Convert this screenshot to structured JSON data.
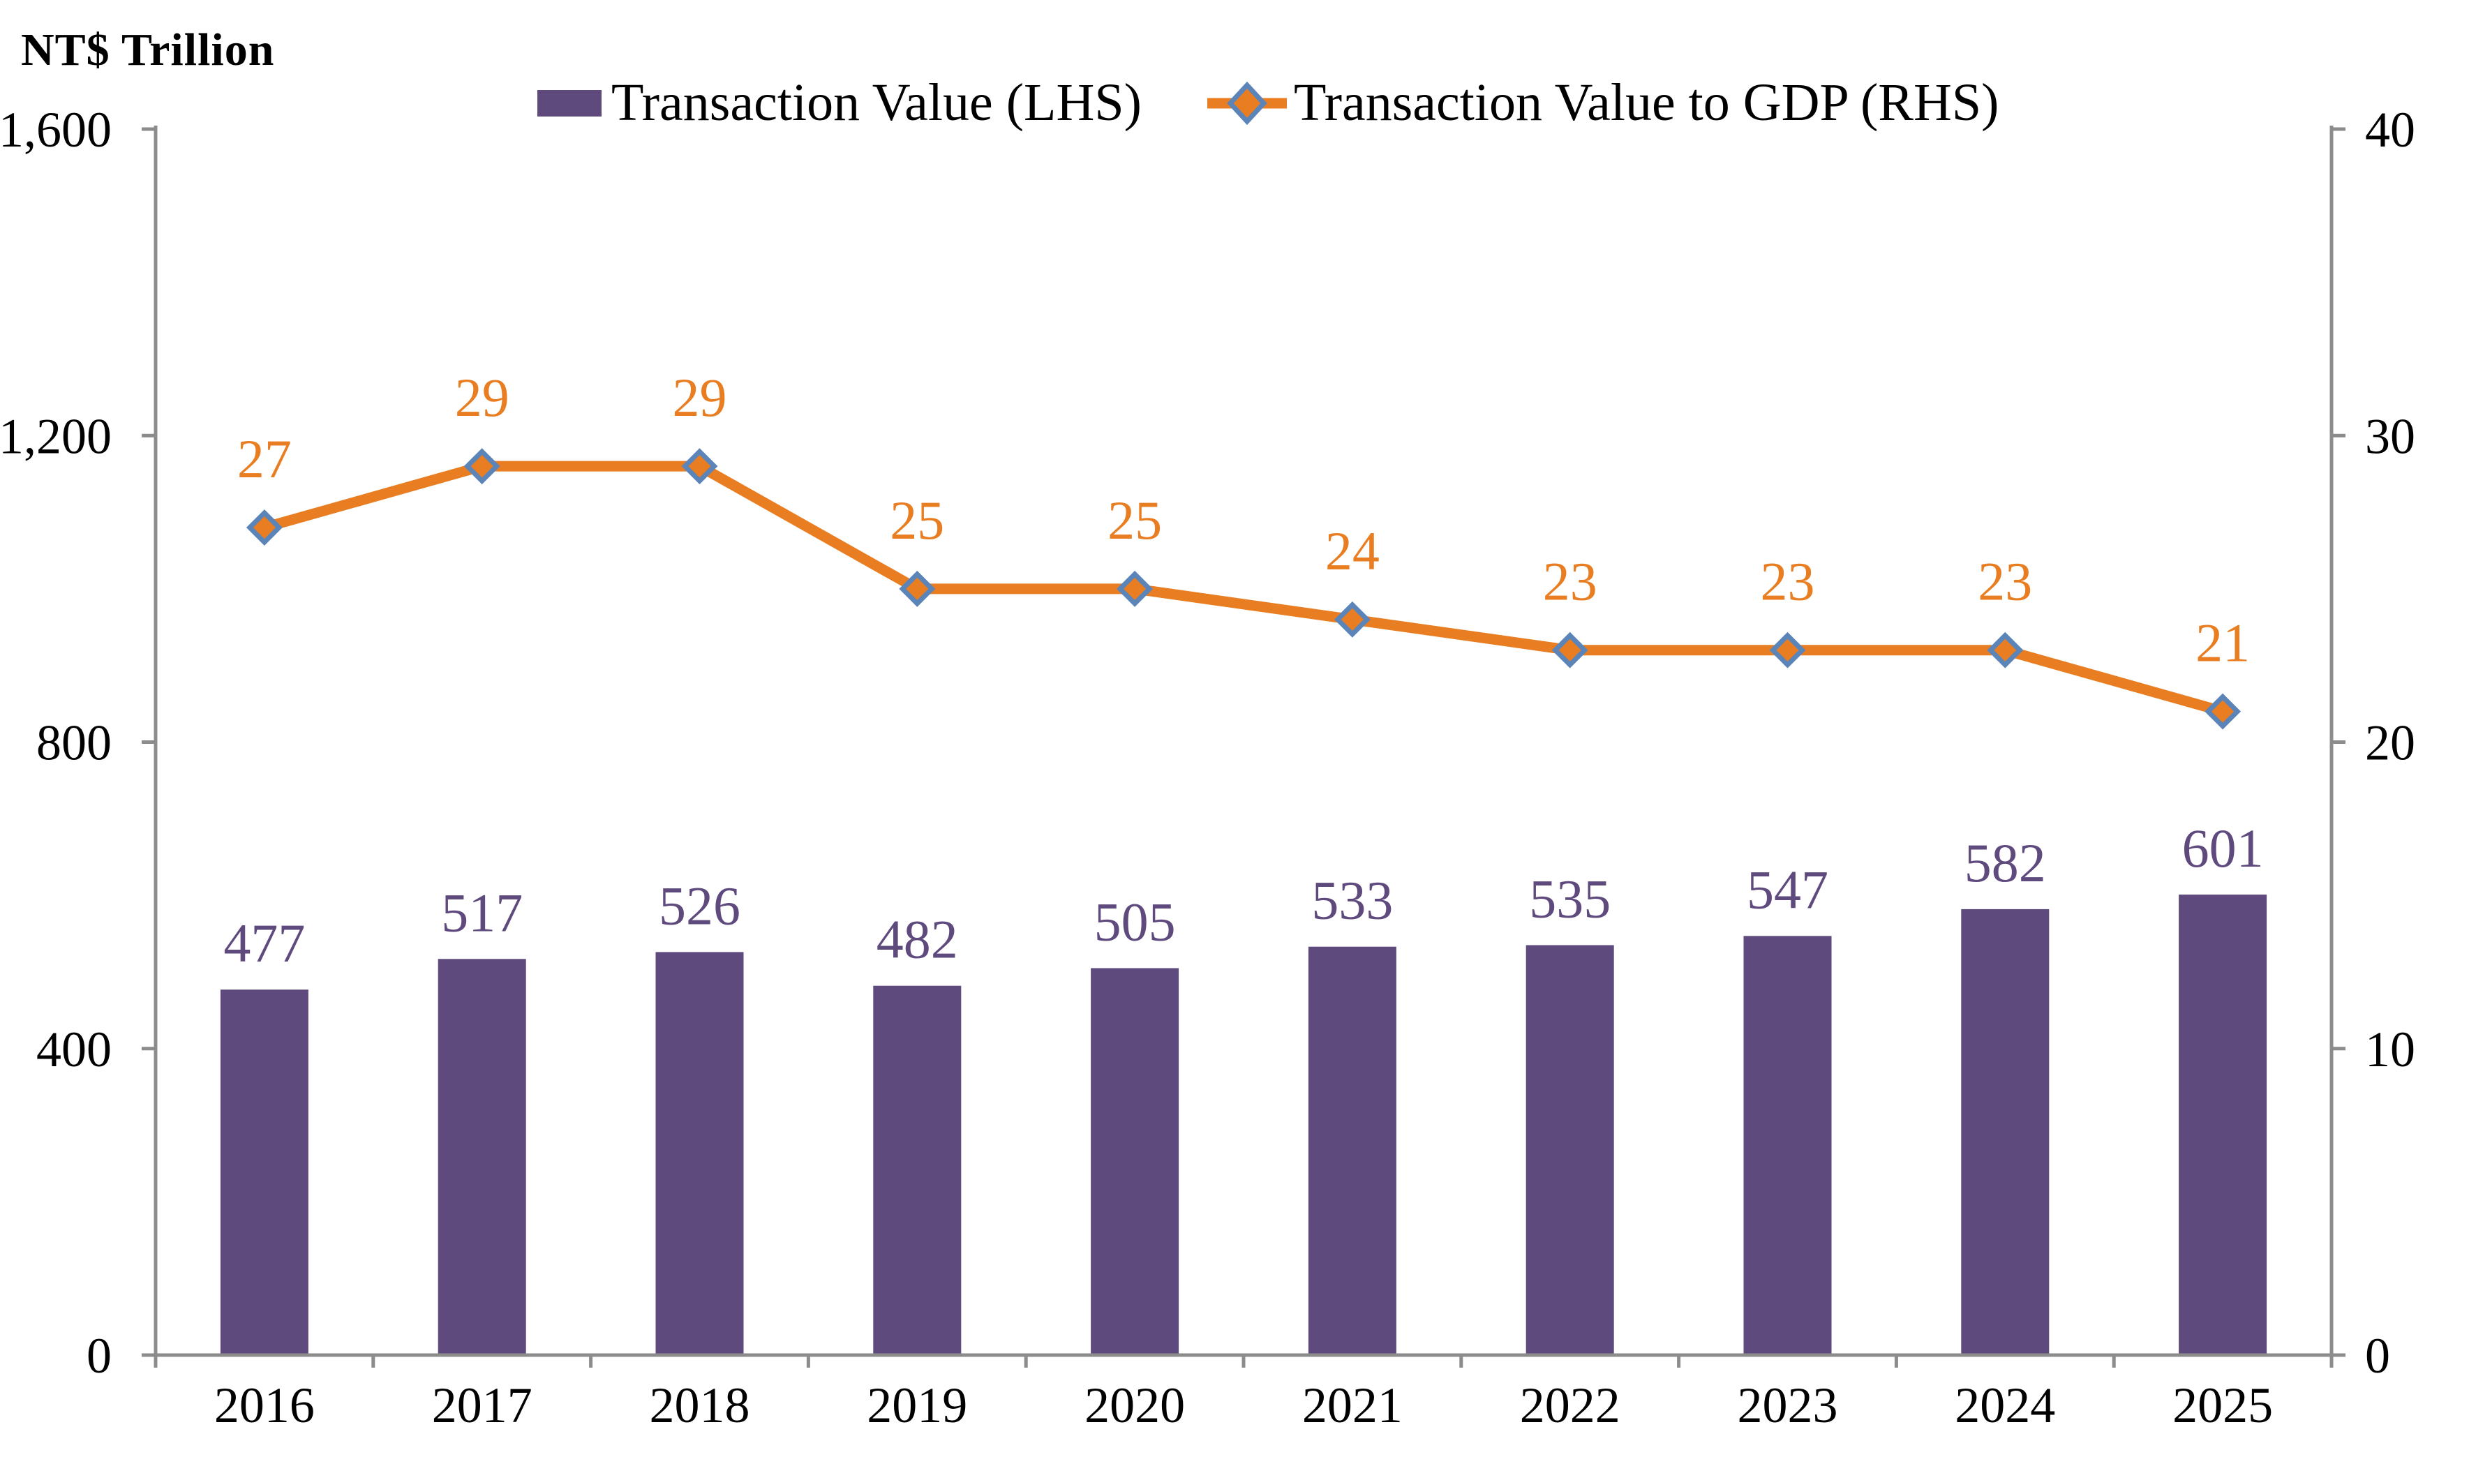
{
  "title": "NT$ Trillion",
  "legend": [
    {
      "label": "Transaction Value (LHS)",
      "marker": "bar-swatch"
    },
    {
      "label": "Transaction Value to GDP (RHS)",
      "marker": "line-diamond-swatch"
    }
  ],
  "colors": {
    "bar": "#5F4A7E",
    "bar_label": "#5F4A7E",
    "line": "#E87D22",
    "line_label": "#E87D22",
    "marker_fill": "#E87D22",
    "marker_border": "#5B84B8",
    "axis": "#8C8C8C",
    "tick_text": "#000000"
  },
  "chart_data": {
    "type": "bar",
    "subtype": "bar+line dual axis",
    "title": "NT$ Trillion",
    "categories": [
      "2016",
      "2017",
      "2018",
      "2019",
      "2020",
      "2021",
      "2022",
      "2023",
      "2024",
      "2025"
    ],
    "series": [
      {
        "name": "Transaction Value (LHS)",
        "type": "bar",
        "axis": "left",
        "values": [
          477,
          517,
          526,
          482,
          505,
          533,
          535,
          547,
          582,
          601
        ],
        "data_labels": [
          "477",
          "517",
          "526",
          "482",
          "505",
          "533",
          "535",
          "547",
          "582",
          "601"
        ]
      },
      {
        "name": "Transaction Value to GDP (RHS)",
        "type": "line",
        "axis": "right",
        "marker": "diamond",
        "values": [
          27,
          29,
          29,
          25,
          25,
          24,
          23,
          23,
          23,
          21
        ],
        "data_labels": [
          "27",
          "29",
          "29",
          "25",
          "25",
          "24",
          "23",
          "23",
          "23",
          "21"
        ]
      }
    ],
    "left_axis": {
      "label": "NT$ Trillion",
      "min": 0,
      "max": 1600,
      "tick_values": [
        0,
        400,
        800,
        1200,
        1600
      ],
      "tick_labels": [
        "0",
        "400",
        "800",
        "1,200",
        "1,600"
      ]
    },
    "right_axis": {
      "min": 0,
      "max": 40,
      "tick_values": [
        0,
        10,
        20,
        30,
        40
      ],
      "tick_labels": [
        "0",
        "10",
        "20",
        "30",
        "40"
      ]
    },
    "grid": false,
    "legend_position": "top"
  }
}
